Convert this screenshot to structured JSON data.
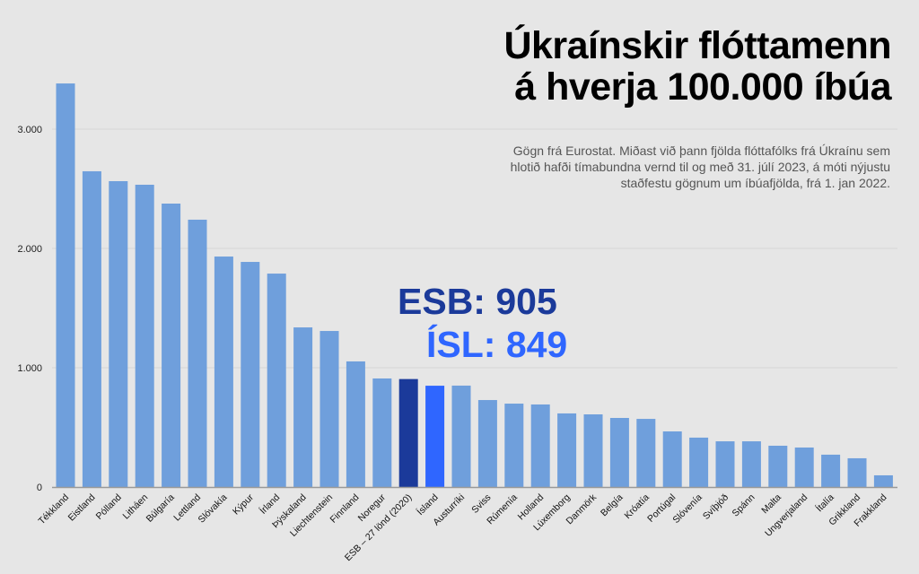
{
  "chart_data": {
    "type": "bar",
    "title": [
      "Úkraínskir flóttamenn",
      "á hverja 100.000 íbúa"
    ],
    "subtitle": "Gögn frá Eurostat. Miðast við þann fjölda flóttafólks frá Úkraínu sem hlotið hafði tímabundna vernd til og með 31. júlí 2023, á móti nýjustu staðfestu gögnum um íbúafjölda, frá 1. jan 2022.",
    "xlabel": "",
    "ylabel": "",
    "ylim": [
      0,
      3500
    ],
    "yticks": [
      0,
      1000,
      2000,
      3000
    ],
    "ytick_labels": [
      "0",
      "1.000",
      "2.000",
      "3.000"
    ],
    "grid": true,
    "categories": [
      "Tékkland",
      "Eistland",
      "Pólland",
      "Litháen",
      "Búlgaría",
      "Lettland",
      "Slóvakía",
      "Kýpur",
      "Írland",
      "Þýskaland",
      "Liechtenstein",
      "Finnland",
      "Noregur",
      "ESB – 27 lönd (2020)",
      "Ísland",
      "Austurríki",
      "Sviss",
      "Rúmenía",
      "Holland",
      "Lúxemborg",
      "Danmörk",
      "Belgía",
      "Króatía",
      "Portúgal",
      "Slóvenía",
      "Svíþjóð",
      "Spánn",
      "Malta",
      "Ungverjaland",
      "Ítalía",
      "Grikkland",
      "Frakkland"
    ],
    "values": [
      3383,
      2647,
      2564,
      2534,
      2376,
      2241,
      1932,
      1887,
      1789,
      1338,
      1308,
      1053,
      910,
      905,
      849,
      850,
      729,
      699,
      692,
      617,
      609,
      579,
      571,
      466,
      414,
      383,
      383,
      346,
      331,
      271,
      241,
      98
    ],
    "highlight": {
      "ESB – 27 lönd (2020)": "#1b3a9a",
      "Ísland": "#2f66ff"
    },
    "bar_color": "#6f9fdc",
    "annotations": [
      {
        "text": "ESB: 905",
        "color": "#1b3a9a"
      },
      {
        "text": "ÍSL: 849",
        "color": "#2f66ff"
      }
    ]
  }
}
